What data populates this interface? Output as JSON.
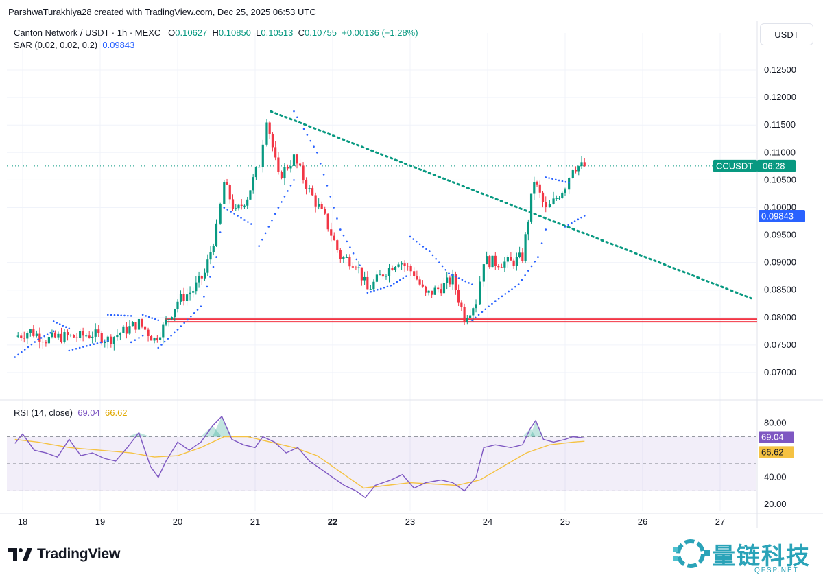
{
  "header": {
    "credit": "ParshwaTurakhiya28 created with TradingView.com, Dec 25, 2025 06:53 UTC"
  },
  "legend": {
    "symbol": "Canton Network / USDT · 1h · MEXC",
    "o_label": "O",
    "o": "0.10627",
    "h_label": "H",
    "h": "0.10850",
    "l_label": "L",
    "l": "0.10513",
    "c_label": "C",
    "c": "0.10755",
    "change": "+0.00136 (+1.28%)",
    "sar_label": "SAR (0.02, 0.02, 0.2)",
    "sar_value": "0.09843",
    "rsi_label": "RSI (14, close)",
    "rsi_value": "69.04",
    "rsi_ma_value": "66.62"
  },
  "currency_button": "USDT",
  "brand": {
    "name": "TradingView"
  },
  "watermark": {
    "text": "量链科技",
    "sub": "QFSP.NET"
  },
  "colors": {
    "up": "#089981",
    "down": "#f23645",
    "sar": "#2962ff",
    "rsi": "#7e57c2",
    "rsi_ma": "#f5c242",
    "support": "#f23645",
    "trendline": "#089981"
  },
  "chart_data": [
    {
      "type": "candlestick",
      "symbol": "CCUSDT",
      "interval": "1h",
      "ylim": [
        0.066,
        0.128
      ],
      "y_ticks": [
        "0.12500",
        "0.12000",
        "0.11500",
        "0.11000",
        "0.10500",
        "0.10000",
        "0.09500",
        "0.09000",
        "0.08500",
        "0.08000",
        "0.07500",
        "0.07000"
      ],
      "y_tick_values": [
        0.125,
        0.12,
        0.115,
        0.11,
        0.105,
        0.1,
        0.095,
        0.09,
        0.085,
        0.08,
        0.075,
        0.07
      ],
      "x_ticks": [
        "18",
        "19",
        "20",
        "21",
        "22",
        "23",
        "24",
        "25",
        "26",
        "27"
      ],
      "x_tick_days": [
        18,
        19,
        20,
        21,
        22,
        23,
        24,
        25,
        26,
        27
      ],
      "last_price_label": "CCUSDT",
      "last_price_time": "06:28",
      "last_price": 0.10755,
      "sar_label_value": "0.09843",
      "sar_last": 0.09843,
      "close_series": [
        [
          17.9,
          0.0765
        ],
        [
          18.1,
          0.0775
        ],
        [
          18.3,
          0.076
        ],
        [
          18.5,
          0.0765
        ],
        [
          18.7,
          0.0765
        ],
        [
          18.9,
          0.077
        ],
        [
          19.1,
          0.076
        ],
        [
          19.3,
          0.0775
        ],
        [
          19.5,
          0.079
        ],
        [
          19.7,
          0.076
        ],
        [
          19.85,
          0.079
        ],
        [
          20.0,
          0.083
        ],
        [
          20.2,
          0.085
        ],
        [
          20.35,
          0.088
        ],
        [
          20.5,
          0.096
        ],
        [
          20.6,
          0.1045
        ],
        [
          20.75,
          0.099
        ],
        [
          20.9,
          0.102
        ],
        [
          21.05,
          0.108
        ],
        [
          21.15,
          0.1165
        ],
        [
          21.3,
          0.1055
        ],
        [
          21.5,
          0.109
        ],
        [
          21.7,
          0.103
        ],
        [
          21.9,
          0.098
        ],
        [
          22.1,
          0.091
        ],
        [
          22.3,
          0.09
        ],
        [
          22.45,
          0.085
        ],
        [
          22.65,
          0.088
        ],
        [
          22.85,
          0.0905
        ],
        [
          23.05,
          0.088
        ],
        [
          23.2,
          0.084
        ],
        [
          23.4,
          0.0855
        ],
        [
          23.55,
          0.087
        ],
        [
          23.7,
          0.08
        ],
        [
          23.85,
          0.083
        ],
        [
          23.95,
          0.0905
        ],
        [
          24.1,
          0.09
        ],
        [
          24.3,
          0.09
        ],
        [
          24.45,
          0.091
        ],
        [
          24.6,
          0.105
        ],
        [
          24.75,
          0.0995
        ],
        [
          24.85,
          0.101
        ],
        [
          25.0,
          0.104
        ],
        [
          25.1,
          0.1075
        ],
        [
          25.25,
          0.1075
        ]
      ],
      "sar_segments": [
        [
          [
            17.9,
            0.0728
          ],
          [
            18.2,
            0.076
          ],
          [
            18.4,
            0.0775
          ]
        ],
        [
          [
            18.4,
            0.0793
          ],
          [
            18.6,
            0.078
          ]
        ],
        [
          [
            18.6,
            0.074
          ],
          [
            19.1,
            0.0758
          ]
        ],
        [
          [
            19.1,
            0.0805
          ],
          [
            19.4,
            0.0803
          ]
        ],
        [
          [
            19.4,
            0.0755
          ],
          [
            19.55,
            0.0767
          ]
        ],
        [
          [
            19.55,
            0.0805
          ],
          [
            19.75,
            0.0795
          ]
        ],
        [
          [
            19.75,
            0.0745
          ],
          [
            20.0,
            0.0778
          ],
          [
            20.3,
            0.082
          ],
          [
            20.5,
            0.091
          ],
          [
            20.6,
            0.1
          ]
        ],
        [
          [
            20.6,
            0.1
          ],
          [
            20.95,
            0.097
          ]
        ],
        [
          [
            21.05,
            0.093
          ],
          [
            21.3,
            0.1
          ],
          [
            21.5,
            0.105
          ]
        ],
        [
          [
            21.5,
            0.1175
          ],
          [
            21.8,
            0.11
          ],
          [
            22.1,
            0.096
          ],
          [
            22.35,
            0.0895
          ]
        ],
        [
          [
            22.45,
            0.0845
          ],
          [
            22.75,
            0.0858
          ],
          [
            22.95,
            0.0875
          ]
        ],
        [
          [
            23.0,
            0.0947
          ],
          [
            23.25,
            0.092
          ],
          [
            23.5,
            0.088
          ],
          [
            23.8,
            0.086
          ]
        ],
        [
          [
            23.8,
            0.0795
          ],
          [
            24.1,
            0.083
          ],
          [
            24.4,
            0.086
          ],
          [
            24.65,
            0.091
          ],
          [
            24.75,
            0.096
          ]
        ],
        [
          [
            24.75,
            0.1055
          ],
          [
            25.05,
            0.1045
          ]
        ],
        [
          [
            25.0,
            0.0965
          ],
          [
            25.25,
            0.0985
          ]
        ]
      ],
      "support_levels": [
        0.0797,
        0.0792
      ],
      "trendline": [
        [
          21.2,
          0.1175
        ],
        [
          27.4,
          0.0835
        ]
      ]
    },
    {
      "type": "line",
      "ylim": [
        15,
        90
      ],
      "y_ticks": [
        "80.00",
        "40.00",
        "20.00"
      ],
      "y_tick_values": [
        80,
        40,
        20
      ],
      "levels": [
        70,
        50,
        30
      ],
      "rsi_last_label": "69.04",
      "rsi_ma_last_label": "66.62",
      "series": [
        {
          "values": [
            [
              17.9,
              65
            ],
            [
              18.0,
              72
            ],
            [
              18.15,
              60
            ],
            [
              18.3,
              58
            ],
            [
              18.45,
              55
            ],
            [
              18.6,
              68
            ],
            [
              18.75,
              56
            ],
            [
              18.9,
              58
            ],
            [
              19.05,
              54
            ],
            [
              19.2,
              52
            ],
            [
              19.35,
              62
            ],
            [
              19.5,
              73
            ],
            [
              19.65,
              48
            ],
            [
              19.75,
              40
            ],
            [
              19.85,
              52
            ],
            [
              20.0,
              66
            ],
            [
              20.15,
              60
            ],
            [
              20.3,
              66
            ],
            [
              20.45,
              78
            ],
            [
              20.57,
              85
            ],
            [
              20.7,
              68
            ],
            [
              20.85,
              64
            ],
            [
              21.0,
              62
            ],
            [
              21.1,
              70
            ],
            [
              21.25,
              66
            ],
            [
              21.4,
              58
            ],
            [
              21.55,
              62
            ],
            [
              21.7,
              52
            ],
            [
              21.85,
              46
            ],
            [
              22.0,
              40
            ],
            [
              22.15,
              34
            ],
            [
              22.3,
              30
            ],
            [
              22.42,
              25
            ],
            [
              22.55,
              34
            ],
            [
              22.75,
              38
            ],
            [
              22.9,
              42
            ],
            [
              23.05,
              32
            ],
            [
              23.2,
              36
            ],
            [
              23.4,
              38
            ],
            [
              23.55,
              36
            ],
            [
              23.7,
              30
            ],
            [
              23.85,
              40
            ],
            [
              23.95,
              62
            ],
            [
              24.1,
              64
            ],
            [
              24.3,
              62
            ],
            [
              24.45,
              64
            ],
            [
              24.55,
              76
            ],
            [
              24.62,
              82
            ],
            [
              24.72,
              68
            ],
            [
              24.85,
              66
            ],
            [
              25.0,
              68
            ],
            [
              25.1,
              70
            ],
            [
              25.25,
              69
            ]
          ]
        },
        {
          "values": [
            [
              17.9,
              68
            ],
            [
              18.2,
              66
            ],
            [
              18.6,
              62
            ],
            [
              19.0,
              60
            ],
            [
              19.4,
              58
            ],
            [
              19.7,
              55
            ],
            [
              20.0,
              56
            ],
            [
              20.3,
              62
            ],
            [
              20.6,
              70
            ],
            [
              20.9,
              70
            ],
            [
              21.2,
              66
            ],
            [
              21.5,
              62
            ],
            [
              21.8,
              56
            ],
            [
              22.1,
              44
            ],
            [
              22.4,
              32
            ],
            [
              22.7,
              34
            ],
            [
              23.0,
              36
            ],
            [
              23.3,
              35
            ],
            [
              23.6,
              34
            ],
            [
              23.9,
              38
            ],
            [
              24.2,
              48
            ],
            [
              24.5,
              58
            ],
            [
              24.8,
              64
            ],
            [
              25.1,
              66
            ],
            [
              25.25,
              66.6
            ]
          ]
        }
      ]
    }
  ]
}
